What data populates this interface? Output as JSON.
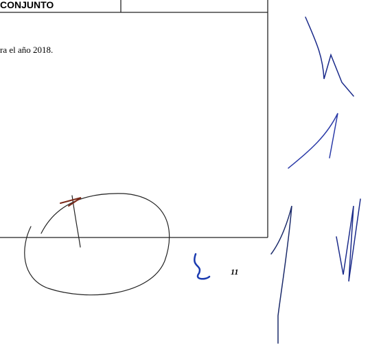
{
  "table": {
    "header_label": "CONJUNTO",
    "body_text": "ra el año 2018."
  },
  "footer": {
    "page_number": "11"
  }
}
